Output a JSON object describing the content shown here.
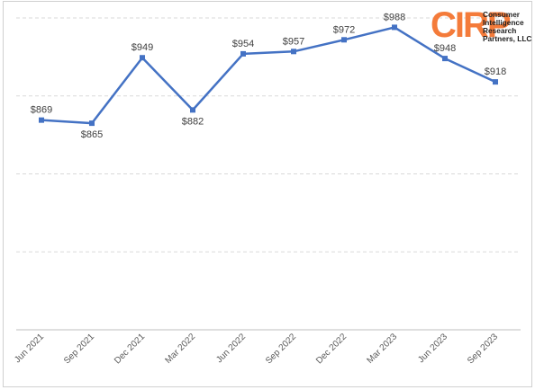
{
  "colors": {
    "series": "#4472c4",
    "grid": "#d9d9d9",
    "brand": "#f47b3a"
  },
  "logo": {
    "mark": "CIRP",
    "lines": [
      "Consumer",
      "Intelligence",
      "Research",
      "Partners, LLC"
    ]
  },
  "chart_data": {
    "type": "line",
    "title": "",
    "xlabel": "",
    "ylabel": "",
    "categories": [
      "Jun 2021",
      "Sep 2021",
      "Dec 2021",
      "Mar 2022",
      "Jun 2022",
      "Sep 2022",
      "Dec 2022",
      "Mar 2023",
      "Jun 2023",
      "Sep 2023"
    ],
    "series": [
      {
        "values": [
          869,
          865,
          949,
          882,
          954,
          957,
          972,
          988,
          948,
          918
        ],
        "labels": [
          "$869",
          "$865",
          "$949",
          "$882",
          "$954",
          "$957",
          "$972",
          "$988",
          "$948",
          "$918"
        ]
      }
    ],
    "ylim": [
      600,
      1000
    ],
    "y_gridlines": [
      700,
      800,
      900,
      1000
    ],
    "y_tick_labels_shown": false,
    "grid": true,
    "legend": "none",
    "data_label_positions": [
      "above",
      "below",
      "above",
      "below",
      "above",
      "above",
      "above",
      "above",
      "above",
      "above"
    ]
  }
}
